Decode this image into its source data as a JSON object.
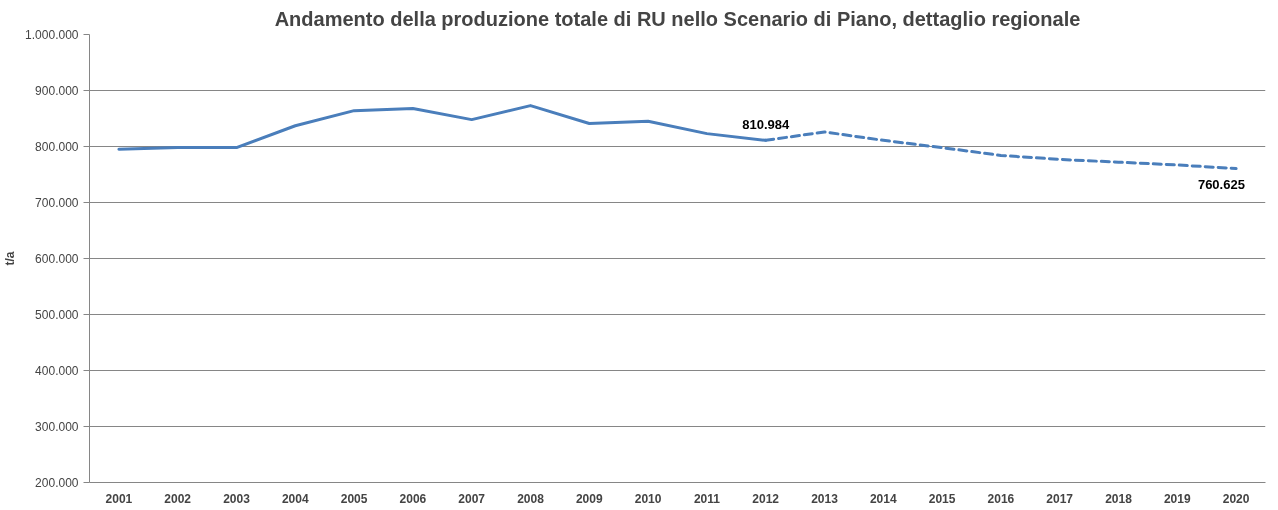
{
  "chart_data": {
    "type": "line",
    "title": "Andamento della produzione totale di RU nello Scenario di Piano, dettaglio regionale",
    "ylabel": "t/a",
    "categories": [
      "2001",
      "2002",
      "2003",
      "2004",
      "2005",
      "2006",
      "2007",
      "2008",
      "2009",
      "2010",
      "2011",
      "2012",
      "2013",
      "2014",
      "2015",
      "2016",
      "2017",
      "2018",
      "2019",
      "2020"
    ],
    "series": [
      {
        "color": "#4a7ebb",
        "line_style": "solid",
        "values": [
          795000,
          798000,
          798000,
          837000,
          864000,
          868000,
          848000,
          873000,
          841000,
          845000,
          823000,
          810984,
          null,
          null,
          null,
          null,
          null,
          null,
          null,
          null
        ],
        "value_labels": [
          null,
          null,
          null,
          null,
          null,
          null,
          null,
          null,
          null,
          null,
          null,
          "810.984",
          null,
          null,
          null,
          null,
          null,
          null,
          null,
          null
        ]
      },
      {
        "color": "#4a7ebb",
        "line_style": "dashed",
        "values": [
          null,
          null,
          null,
          null,
          null,
          null,
          null,
          null,
          null,
          null,
          null,
          810984,
          826000,
          811000,
          798000,
          784000,
          777000,
          772000,
          767000,
          760625
        ],
        "value_labels": [
          null,
          null,
          null,
          null,
          null,
          null,
          null,
          null,
          null,
          null,
          null,
          null,
          null,
          null,
          null,
          null,
          null,
          null,
          null,
          "760.625"
        ]
      }
    ],
    "ylim": [
      200000,
      1000000
    ],
    "yticks": [
      {
        "value": 200000,
        "label": "200.000"
      },
      {
        "value": 300000,
        "label": "300.000"
      },
      {
        "value": 400000,
        "label": "400.000"
      },
      {
        "value": 500000,
        "label": "500.000"
      },
      {
        "value": 600000,
        "label": "600.000"
      },
      {
        "value": 700000,
        "label": "700.000"
      },
      {
        "value": 800000,
        "label": "800.000"
      },
      {
        "value": 900000,
        "label": "900.000"
      },
      {
        "value": 1000000,
        "label": "1.000.000"
      }
    ],
    "grid": "y",
    "marker": "none"
  }
}
